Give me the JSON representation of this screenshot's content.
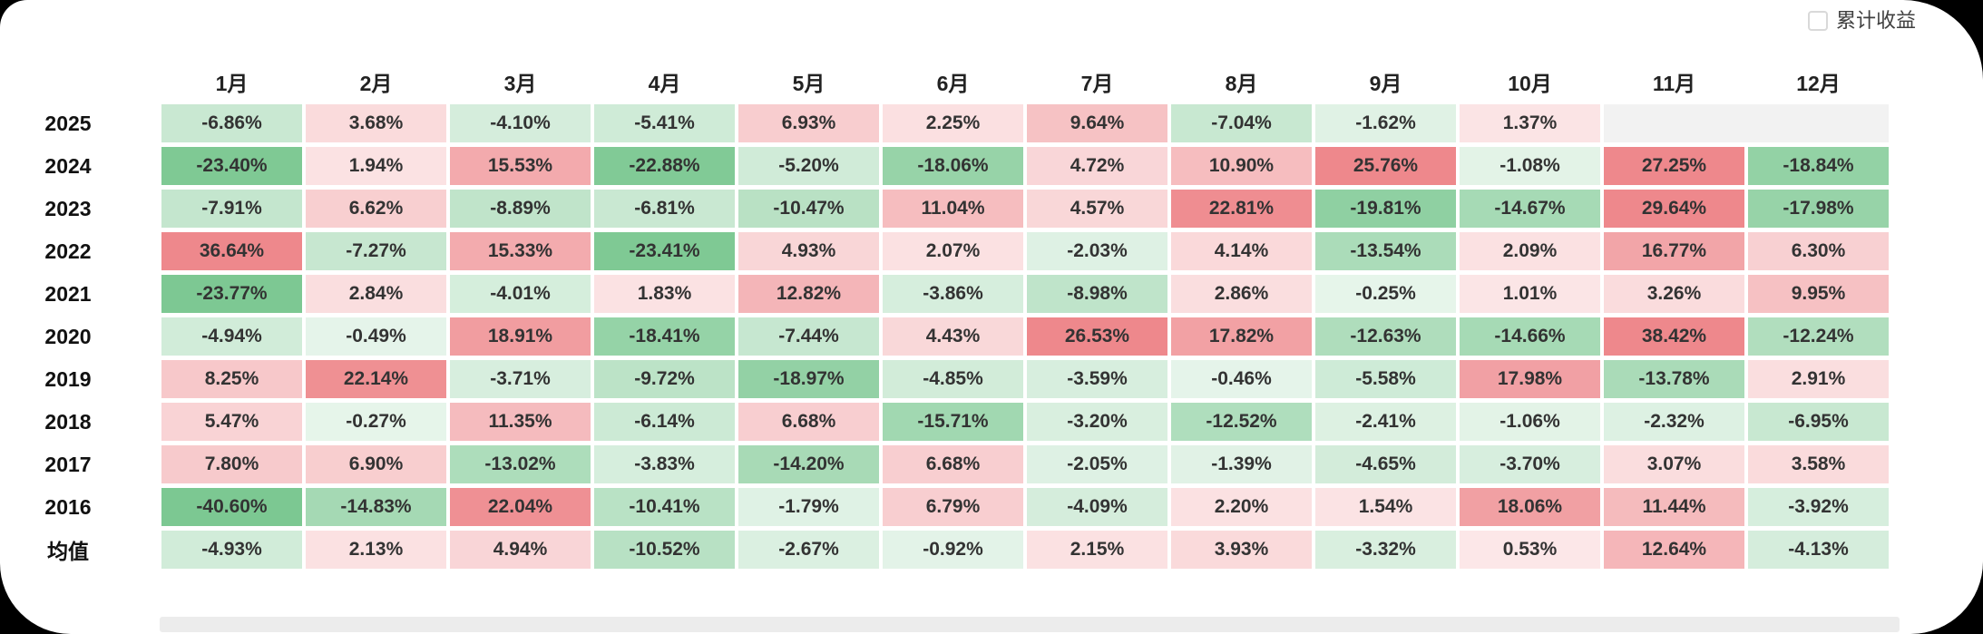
{
  "controls": {
    "cumulative_checkbox_label": "累计收益",
    "cumulative_checked": false
  },
  "chart_data": {
    "type": "heatmap",
    "title": "",
    "columns": [
      "1月",
      "2月",
      "3月",
      "4月",
      "5月",
      "6月",
      "7月",
      "8月",
      "9月",
      "10月",
      "11月",
      "12月"
    ],
    "rows": [
      {
        "label": "2025",
        "values": [
          "-6.86%",
          "3.68%",
          "-4.10%",
          "-5.41%",
          "6.93%",
          "2.25%",
          "9.64%",
          "-7.04%",
          "-1.62%",
          "1.37%",
          null,
          null
        ]
      },
      {
        "label": "2024",
        "values": [
          "-23.40%",
          "1.94%",
          "15.53%",
          "-22.88%",
          "-5.20%",
          "-18.06%",
          "4.72%",
          "10.90%",
          "25.76%",
          "-1.08%",
          "27.25%",
          "-18.84%"
        ]
      },
      {
        "label": "2023",
        "values": [
          "-7.91%",
          "6.62%",
          "-8.89%",
          "-6.81%",
          "-10.47%",
          "11.04%",
          "4.57%",
          "22.81%",
          "-19.81%",
          "-14.67%",
          "29.64%",
          "-17.98%"
        ]
      },
      {
        "label": "2022",
        "values": [
          "36.64%",
          "-7.27%",
          "15.33%",
          "-23.41%",
          "4.93%",
          "2.07%",
          "-2.03%",
          "4.14%",
          "-13.54%",
          "2.09%",
          "16.77%",
          "6.30%"
        ]
      },
      {
        "label": "2021",
        "values": [
          "-23.77%",
          "2.84%",
          "-4.01%",
          "1.83%",
          "12.82%",
          "-3.86%",
          "-8.98%",
          "2.86%",
          "-0.25%",
          "1.01%",
          "3.26%",
          "9.95%"
        ]
      },
      {
        "label": "2020",
        "values": [
          "-4.94%",
          "-0.49%",
          "18.91%",
          "-18.41%",
          "-7.44%",
          "4.43%",
          "26.53%",
          "17.82%",
          "-12.63%",
          "-14.66%",
          "38.42%",
          "-12.24%"
        ]
      },
      {
        "label": "2019",
        "values": [
          "8.25%",
          "22.14%",
          "-3.71%",
          "-9.72%",
          "-18.97%",
          "-4.85%",
          "-3.59%",
          "-0.46%",
          "-5.58%",
          "17.98%",
          "-13.78%",
          "2.91%"
        ]
      },
      {
        "label": "2018",
        "values": [
          "5.47%",
          "-0.27%",
          "11.35%",
          "-6.14%",
          "6.68%",
          "-15.71%",
          "-3.20%",
          "-12.52%",
          "-2.41%",
          "-1.06%",
          "-2.32%",
          "-6.95%"
        ]
      },
      {
        "label": "2017",
        "values": [
          "7.80%",
          "6.90%",
          "-13.02%",
          "-3.83%",
          "-14.20%",
          "6.68%",
          "-2.05%",
          "-1.39%",
          "-4.65%",
          "-3.70%",
          "3.07%",
          "3.58%"
        ]
      },
      {
        "label": "2016",
        "values": [
          "-40.60%",
          "-14.83%",
          "22.04%",
          "-10.41%",
          "-1.79%",
          "6.79%",
          "-4.09%",
          "2.20%",
          "1.54%",
          "18.06%",
          "11.44%",
          "-3.92%"
        ]
      },
      {
        "label": "均值",
        "values": [
          "-4.93%",
          "2.13%",
          "4.94%",
          "-10.52%",
          "-2.67%",
          "-0.92%",
          "2.15%",
          "3.93%",
          "-3.32%",
          "0.53%",
          "12.64%",
          "-4.13%"
        ]
      }
    ],
    "colors": {
      "positive_max": "#ee888c",
      "negative_max": "#7cc892",
      "empty_cell": "#f2f2f2",
      "cell_text": "#333333",
      "scale_cap": 24,
      "intensity_floor": 0.18
    },
    "layout": {
      "legend": "none",
      "grid": "off",
      "value_convention": "positive=red, negative=green"
    }
  }
}
